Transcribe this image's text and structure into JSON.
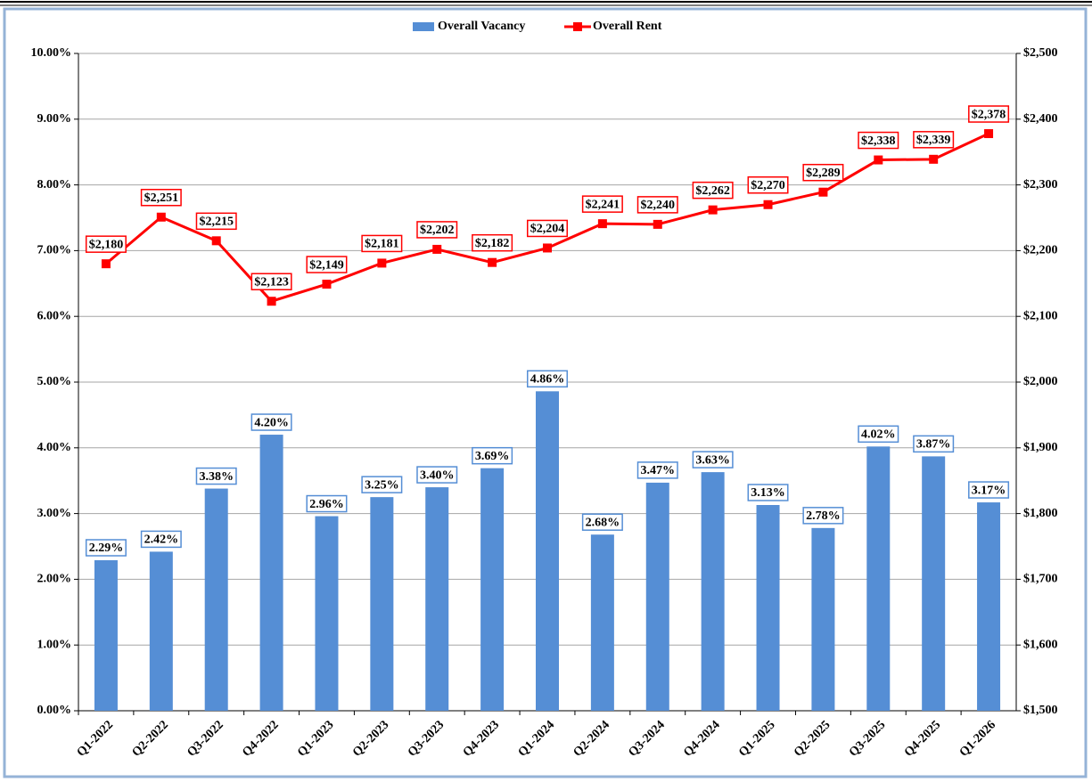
{
  "chart_data": {
    "type": "bar",
    "categories": [
      "Q1-2022",
      "Q2-2022",
      "Q3-2022",
      "Q4-2022",
      "Q1-2023",
      "Q2-2023",
      "Q3-2023",
      "Q4-2023",
      "Q1-2024",
      "Q2-2024",
      "Q3-2024",
      "Q4-2024",
      "Q1-2025",
      "Q2-2025",
      "Q3-2025",
      "Q4-2025",
      "Q1-2026"
    ],
    "series": [
      {
        "name": "Overall Vacancy",
        "type": "bar",
        "color": "#558ed5",
        "values": [
          2.29,
          2.42,
          3.38,
          4.2,
          2.96,
          3.25,
          3.4,
          3.69,
          4.86,
          2.68,
          3.47,
          3.63,
          3.13,
          2.78,
          4.02,
          3.87,
          3.17
        ],
        "value_labels": [
          "2.29%",
          "2.42%",
          "3.38%",
          "4.20%",
          "2.96%",
          "3.25%",
          "3.40%",
          "3.69%",
          "4.86%",
          "2.68%",
          "3.47%",
          "3.63%",
          "3.13%",
          "2.78%",
          "4.02%",
          "3.87%",
          "3.17%"
        ]
      },
      {
        "name": "Overall Rent",
        "type": "line",
        "axis": "y2",
        "color": "#ff0000",
        "values": [
          2180,
          2251,
          2215,
          2123,
          2149,
          2181,
          2202,
          2182,
          2204,
          2241,
          2240,
          2262,
          2270,
          2289,
          2338,
          2339,
          2378
        ],
        "value_labels": [
          "$2,180",
          "$2,251",
          "$2,215",
          "$2,123",
          "$2,149",
          "$2,181",
          "$2,202",
          "$2,182",
          "$2,204",
          "$2,241",
          "$2,240",
          "$2,262",
          "$2,270",
          "$2,289",
          "$2,338",
          "$2,339",
          "$2,378"
        ]
      }
    ],
    "ylim": [
      0,
      10
    ],
    "yticks": [
      {
        "value": 0,
        "label": "0.00%"
      },
      {
        "value": 1,
        "label": "1.00%"
      },
      {
        "value": 2,
        "label": "2.00%"
      },
      {
        "value": 3,
        "label": "3.00%"
      },
      {
        "value": 4,
        "label": "4.00%"
      },
      {
        "value": 5,
        "label": "5.00%"
      },
      {
        "value": 6,
        "label": "6.00%"
      },
      {
        "value": 7,
        "label": "7.00%"
      },
      {
        "value": 8,
        "label": "8.00%"
      },
      {
        "value": 9,
        "label": "9.00%"
      },
      {
        "value": 10,
        "label": "10.00%"
      }
    ],
    "y2lim": [
      1500,
      2500
    ],
    "y2ticks": [
      {
        "value": 1500,
        "label": "$1,500"
      },
      {
        "value": 1600,
        "label": "$1,600"
      },
      {
        "value": 1700,
        "label": "$1,700"
      },
      {
        "value": 1800,
        "label": "$1,800"
      },
      {
        "value": 1900,
        "label": "$1,900"
      },
      {
        "value": 2000,
        "label": "$2,000"
      },
      {
        "value": 2100,
        "label": "$2,100"
      },
      {
        "value": 2200,
        "label": "$2,200"
      },
      {
        "value": 2300,
        "label": "$2,300"
      },
      {
        "value": 2400,
        "label": "$2,400"
      },
      {
        "value": 2500,
        "label": "$2,500"
      }
    ],
    "grid": true,
    "legend": "top"
  }
}
